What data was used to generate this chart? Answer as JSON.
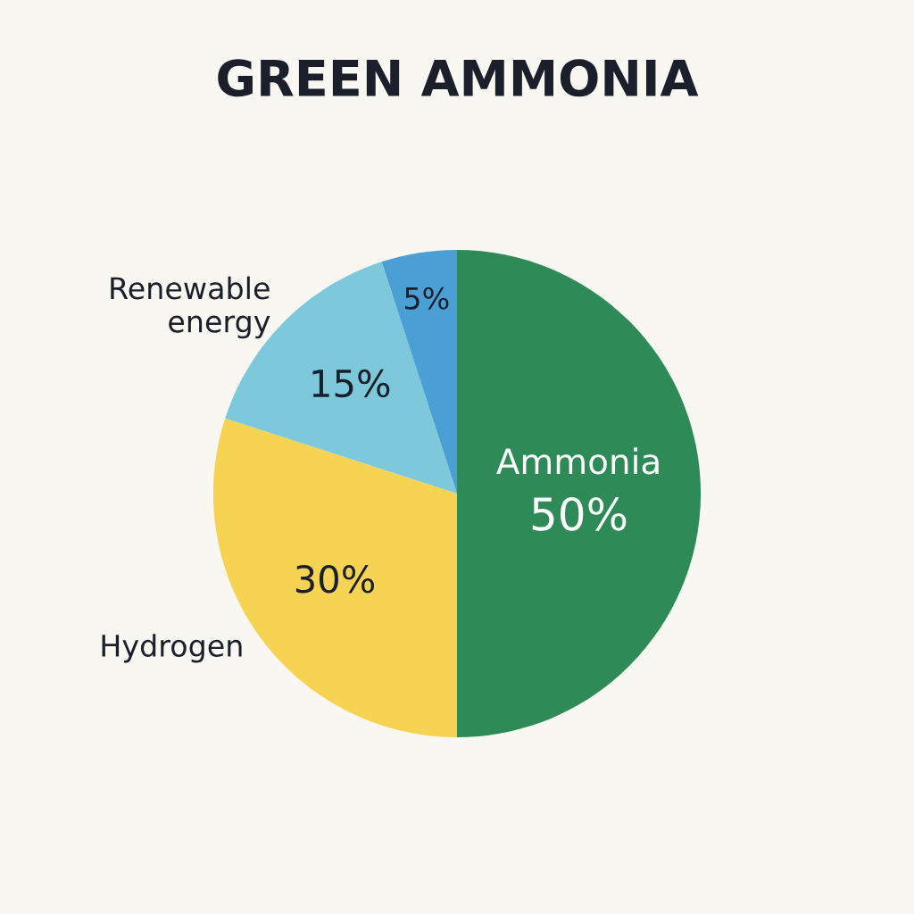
{
  "chart_data": {
    "type": "pie",
    "title": "GREEN AMMONIA",
    "categories": [
      "Ammonia",
      "Hydrogen",
      "Renewable energy",
      null
    ],
    "values": [
      50,
      30,
      15,
      5
    ],
    "value_labels": [
      "50%",
      "30%",
      "15%",
      "5%"
    ],
    "colors": [
      "#2e8b57",
      "#f7d354",
      "#7ec8dc",
      "#4aa0d4"
    ],
    "legend": false
  }
}
